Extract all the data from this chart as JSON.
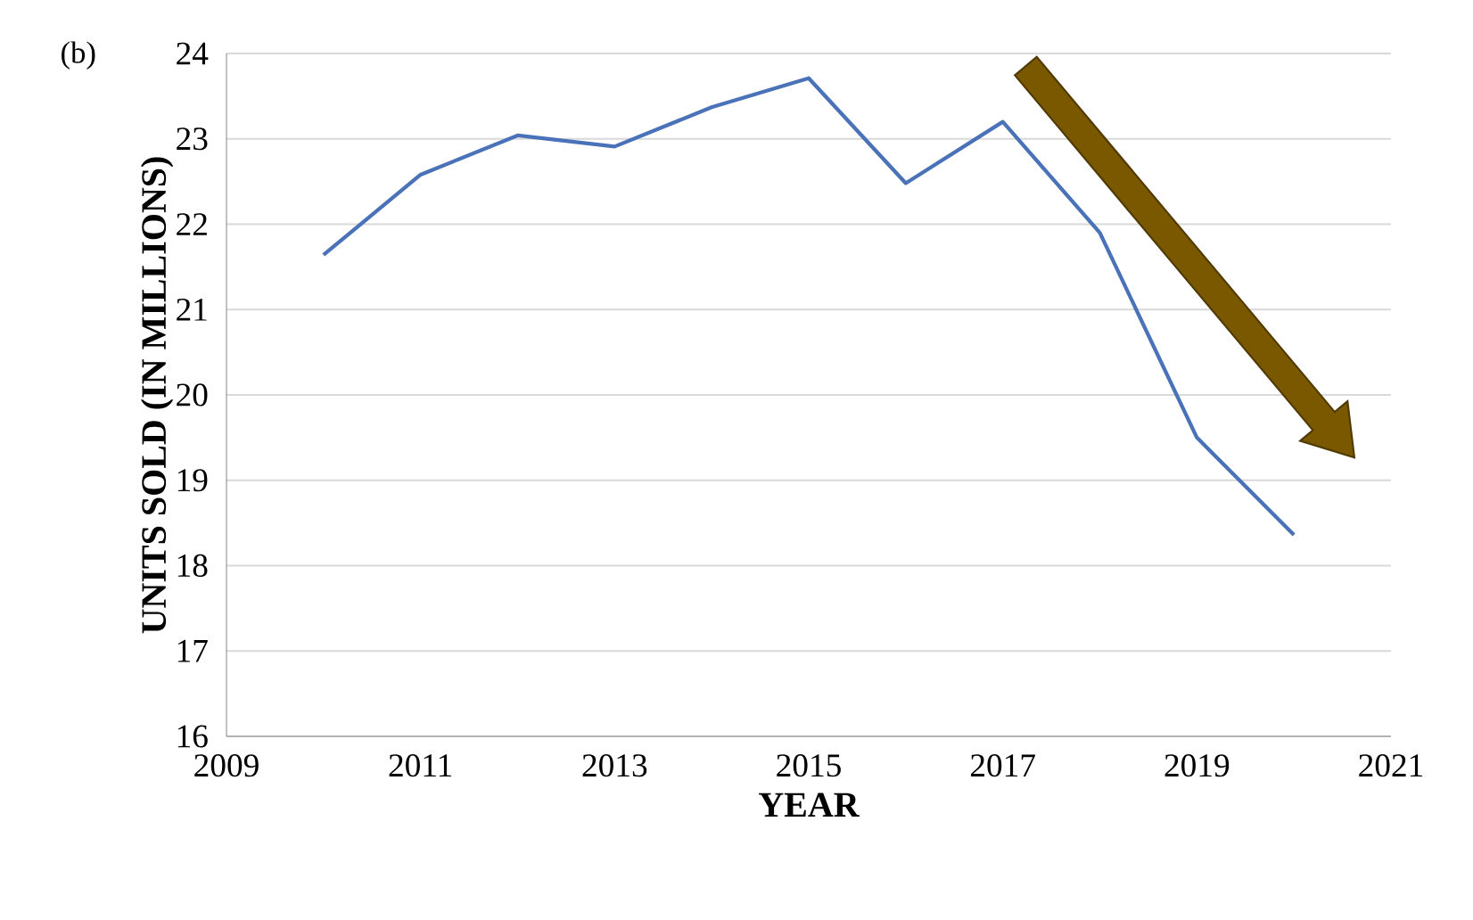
{
  "chart_data": {
    "type": "line",
    "xlabel": "YEAR",
    "ylabel": "UNITS SOLD (IN MILLIONS)",
    "annotations": [
      "(b)"
    ],
    "x": [
      2010,
      2011,
      2012,
      2013,
      2014,
      2015,
      2016,
      2017,
      2018,
      2019,
      2020
    ],
    "series": [
      {
        "color": "#4a72b8",
        "values": [
          21.64,
          22.58,
          23.04,
          22.91,
          23.37,
          23.71,
          22.48,
          23.2,
          21.9,
          19.5,
          18.36
        ]
      }
    ],
    "xlim": [
      2009,
      2021
    ],
    "xticks": [
      2009,
      2011,
      2013,
      2015,
      2017,
      2019,
      2021
    ],
    "ylim": [
      16,
      24
    ],
    "yticks": [
      16,
      17,
      18,
      19,
      20,
      21,
      22,
      23,
      24
    ],
    "grid": "y",
    "line_style": "solid",
    "marker": "none"
  }
}
